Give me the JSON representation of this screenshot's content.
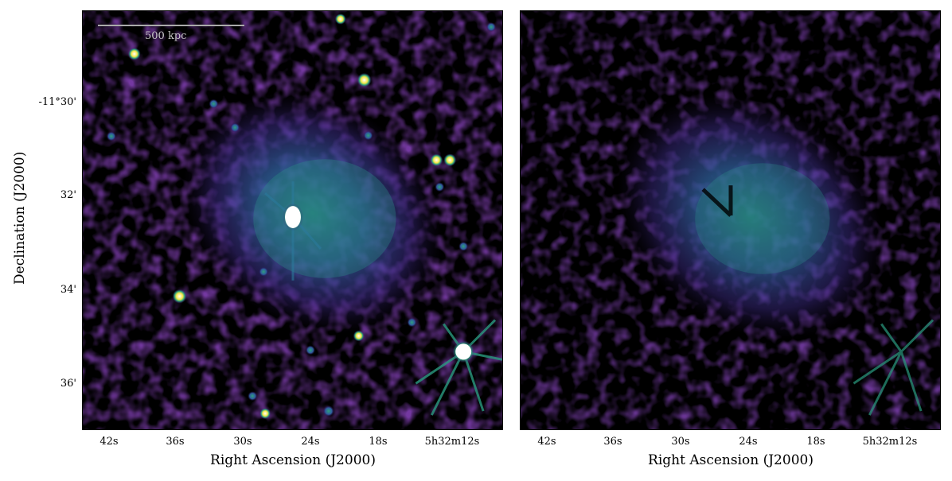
{
  "y_axis": {
    "label": "Declination (J2000)",
    "ticks": [
      "-11°30'",
      "32'",
      "34'",
      "36'"
    ]
  },
  "x_axis": {
    "label": "Right Ascension (J2000)",
    "ticks": [
      "42s",
      "36s",
      "30s",
      "24s",
      "18s",
      "5h32m12s"
    ]
  },
  "scalebar": {
    "label": "500 kpc"
  },
  "colors": {
    "background": "#000000",
    "colormap": "viridis",
    "saturated_source": "#ffffff"
  }
}
